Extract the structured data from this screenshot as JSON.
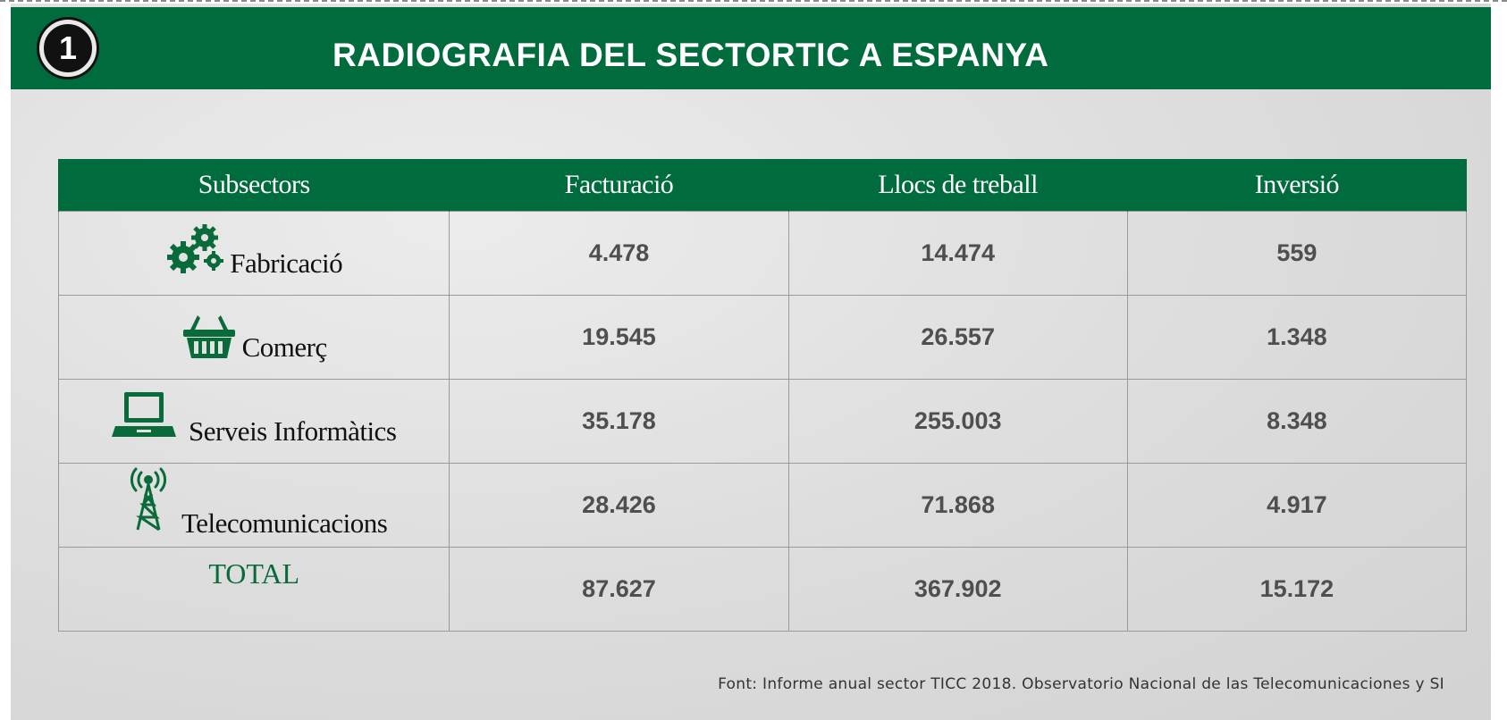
{
  "header": {
    "badge_number": "1",
    "title": "RADIOGRAFIA DEL SECTORTIC A ESPANYA"
  },
  "chart_data": {
    "type": "table",
    "columns": [
      "Subsectors",
      "Facturació",
      "Llocs de treball",
      "Inversió"
    ],
    "rows": [
      {
        "subsector": "Fabricació",
        "icon": "gears-icon",
        "facturacio": "4.478",
        "llocs": "14.474",
        "inversio": "559"
      },
      {
        "subsector": "Comerç",
        "icon": "basket-icon",
        "facturacio": "19.545",
        "llocs": "26.557",
        "inversio": "1.348"
      },
      {
        "subsector": "Serveis Informàtics",
        "icon": "laptop-icon",
        "facturacio": "35.178",
        "llocs": "255.003",
        "inversio": "8.348"
      },
      {
        "subsector": "Telecomunicacions",
        "icon": "antenna-tower-icon",
        "facturacio": "28.426",
        "llocs": "71.868",
        "inversio": "4.917"
      }
    ],
    "total": {
      "label": "TOTAL",
      "facturacio": "87.627",
      "llocs": "367.902",
      "inversio": "15.172"
    }
  },
  "source": "Font: Informe anual sector TICC 2018. Observatorio Nacional de las Telecomunicaciones y SI",
  "colors": {
    "accent": "#006b3c",
    "value_text": "#4f4f4f"
  }
}
